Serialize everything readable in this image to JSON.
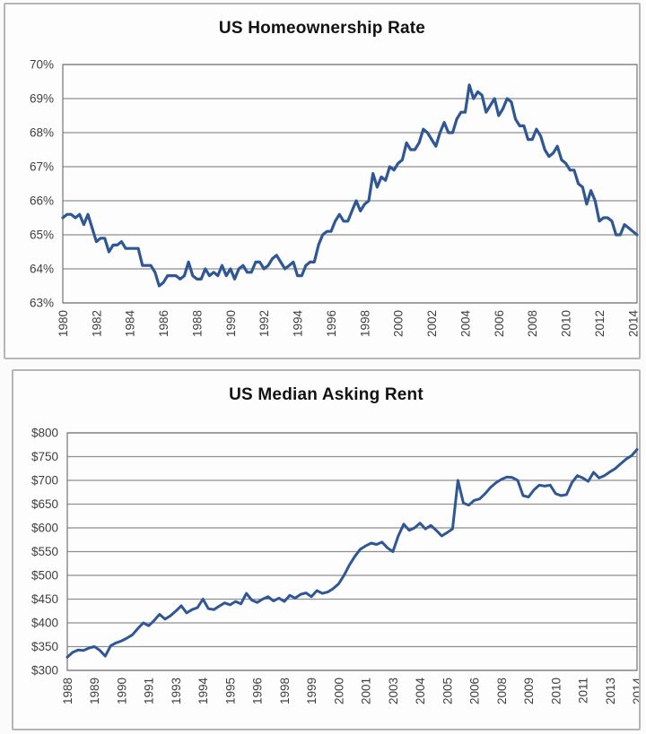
{
  "page": {
    "background": "#fbfbfb"
  },
  "colors": {
    "line": "#2f5796",
    "grid": "#8f8f8f",
    "plot_border": "#7f7f7f",
    "tick_text": "#3f3f3f",
    "title_text": "#121212",
    "panel_border": "#b5b5b5",
    "panel_background": "#fdfdfd"
  },
  "chart_data": [
    {
      "type": "line",
      "title": "US Homeownership Rate",
      "y_unit": "percent",
      "ylim": [
        63,
        70
      ],
      "ytick_step": 1,
      "ytick_labels": [
        "70%",
        "69%",
        "68%",
        "67%",
        "66%",
        "65%",
        "64%",
        "63%"
      ],
      "x_frequency": "quarterly",
      "x_start": "1980 Q1",
      "xtick_every_n_points": 8,
      "xtick_labels": [
        "1980",
        "1982",
        "1984",
        "1986",
        "1988",
        "1990",
        "1992",
        "1994",
        "1996",
        "1998",
        "2000",
        "2002",
        "2004",
        "2006",
        "2008",
        "2010",
        "2012",
        "2014"
      ],
      "grid": true,
      "legend": "none",
      "values": [
        65.5,
        65.6,
        65.6,
        65.5,
        65.6,
        65.3,
        65.6,
        65.2,
        64.8,
        64.9,
        64.9,
        64.5,
        64.7,
        64.7,
        64.8,
        64.6,
        64.6,
        64.6,
        64.6,
        64.1,
        64.1,
        64.1,
        63.9,
        63.5,
        63.6,
        63.8,
        63.8,
        63.8,
        63.7,
        63.8,
        64.2,
        63.8,
        63.7,
        63.7,
        64.0,
        63.8,
        63.9,
        63.8,
        64.1,
        63.8,
        64.0,
        63.7,
        64.0,
        64.1,
        63.9,
        63.9,
        64.2,
        64.2,
        64.0,
        64.1,
        64.3,
        64.4,
        64.2,
        64.0,
        64.1,
        64.2,
        63.8,
        63.8,
        64.1,
        64.2,
        64.2,
        64.7,
        65.0,
        65.1,
        65.1,
        65.4,
        65.6,
        65.4,
        65.4,
        65.7,
        66.0,
        65.7,
        65.9,
        66.0,
        66.8,
        66.4,
        66.7,
        66.6,
        67.0,
        66.9,
        67.1,
        67.2,
        67.7,
        67.5,
        67.5,
        67.7,
        68.1,
        68.0,
        67.8,
        67.6,
        68.0,
        68.3,
        68.0,
        68.0,
        68.4,
        68.6,
        68.6,
        69.4,
        69.0,
        69.2,
        69.1,
        68.6,
        68.8,
        69.0,
        68.5,
        68.7,
        69.0,
        68.9,
        68.4,
        68.2,
        68.2,
        67.8,
        67.8,
        68.1,
        67.9,
        67.5,
        67.3,
        67.4,
        67.6,
        67.2,
        67.1,
        66.9,
        66.9,
        66.5,
        66.4,
        65.9,
        66.3,
        66.0,
        65.4,
        65.5,
        65.5,
        65.4,
        65.0,
        65.0,
        65.3,
        65.2,
        65.1,
        65.0
      ]
    },
    {
      "type": "line",
      "title": "US Median Asking Rent",
      "y_unit": "usd",
      "ylim": [
        300,
        800
      ],
      "ytick_step": 50,
      "ytick_labels": [
        "$800",
        "$750",
        "$700",
        "$650",
        "$600",
        "$550",
        "$500",
        "$450",
        "$400",
        "$350",
        "$300"
      ],
      "x_frequency": "quarterly",
      "x_start": "1988 Q1",
      "xtick_every_n_points": 5,
      "xtick_labels": [
        "1988",
        "1989",
        "1990",
        "1991",
        "1993",
        "1994",
        "1995",
        "1996",
        "1998",
        "1999",
        "2000",
        "2001",
        "2003",
        "2004",
        "2005",
        "2006",
        "2008",
        "2009",
        "2010",
        "2011",
        "2013",
        "2014"
      ],
      "grid": true,
      "legend": "none",
      "values": [
        328,
        338,
        343,
        342,
        347,
        350,
        342,
        330,
        352,
        358,
        362,
        368,
        375,
        388,
        400,
        394,
        405,
        418,
        408,
        415,
        425,
        436,
        421,
        428,
        432,
        450,
        430,
        428,
        435,
        442,
        438,
        445,
        440,
        462,
        448,
        443,
        450,
        455,
        446,
        452,
        445,
        458,
        452,
        460,
        463,
        455,
        468,
        462,
        465,
        472,
        482,
        500,
        522,
        540,
        555,
        562,
        568,
        565,
        570,
        558,
        550,
        583,
        608,
        595,
        600,
        610,
        598,
        605,
        595,
        583,
        590,
        598,
        700,
        652,
        648,
        658,
        661,
        672,
        685,
        695,
        702,
        707,
        706,
        700,
        668,
        665,
        680,
        690,
        688,
        690,
        672,
        668,
        670,
        695,
        710,
        705,
        698,
        717,
        705,
        710,
        718,
        725,
        735,
        745,
        752,
        765
      ]
    }
  ]
}
